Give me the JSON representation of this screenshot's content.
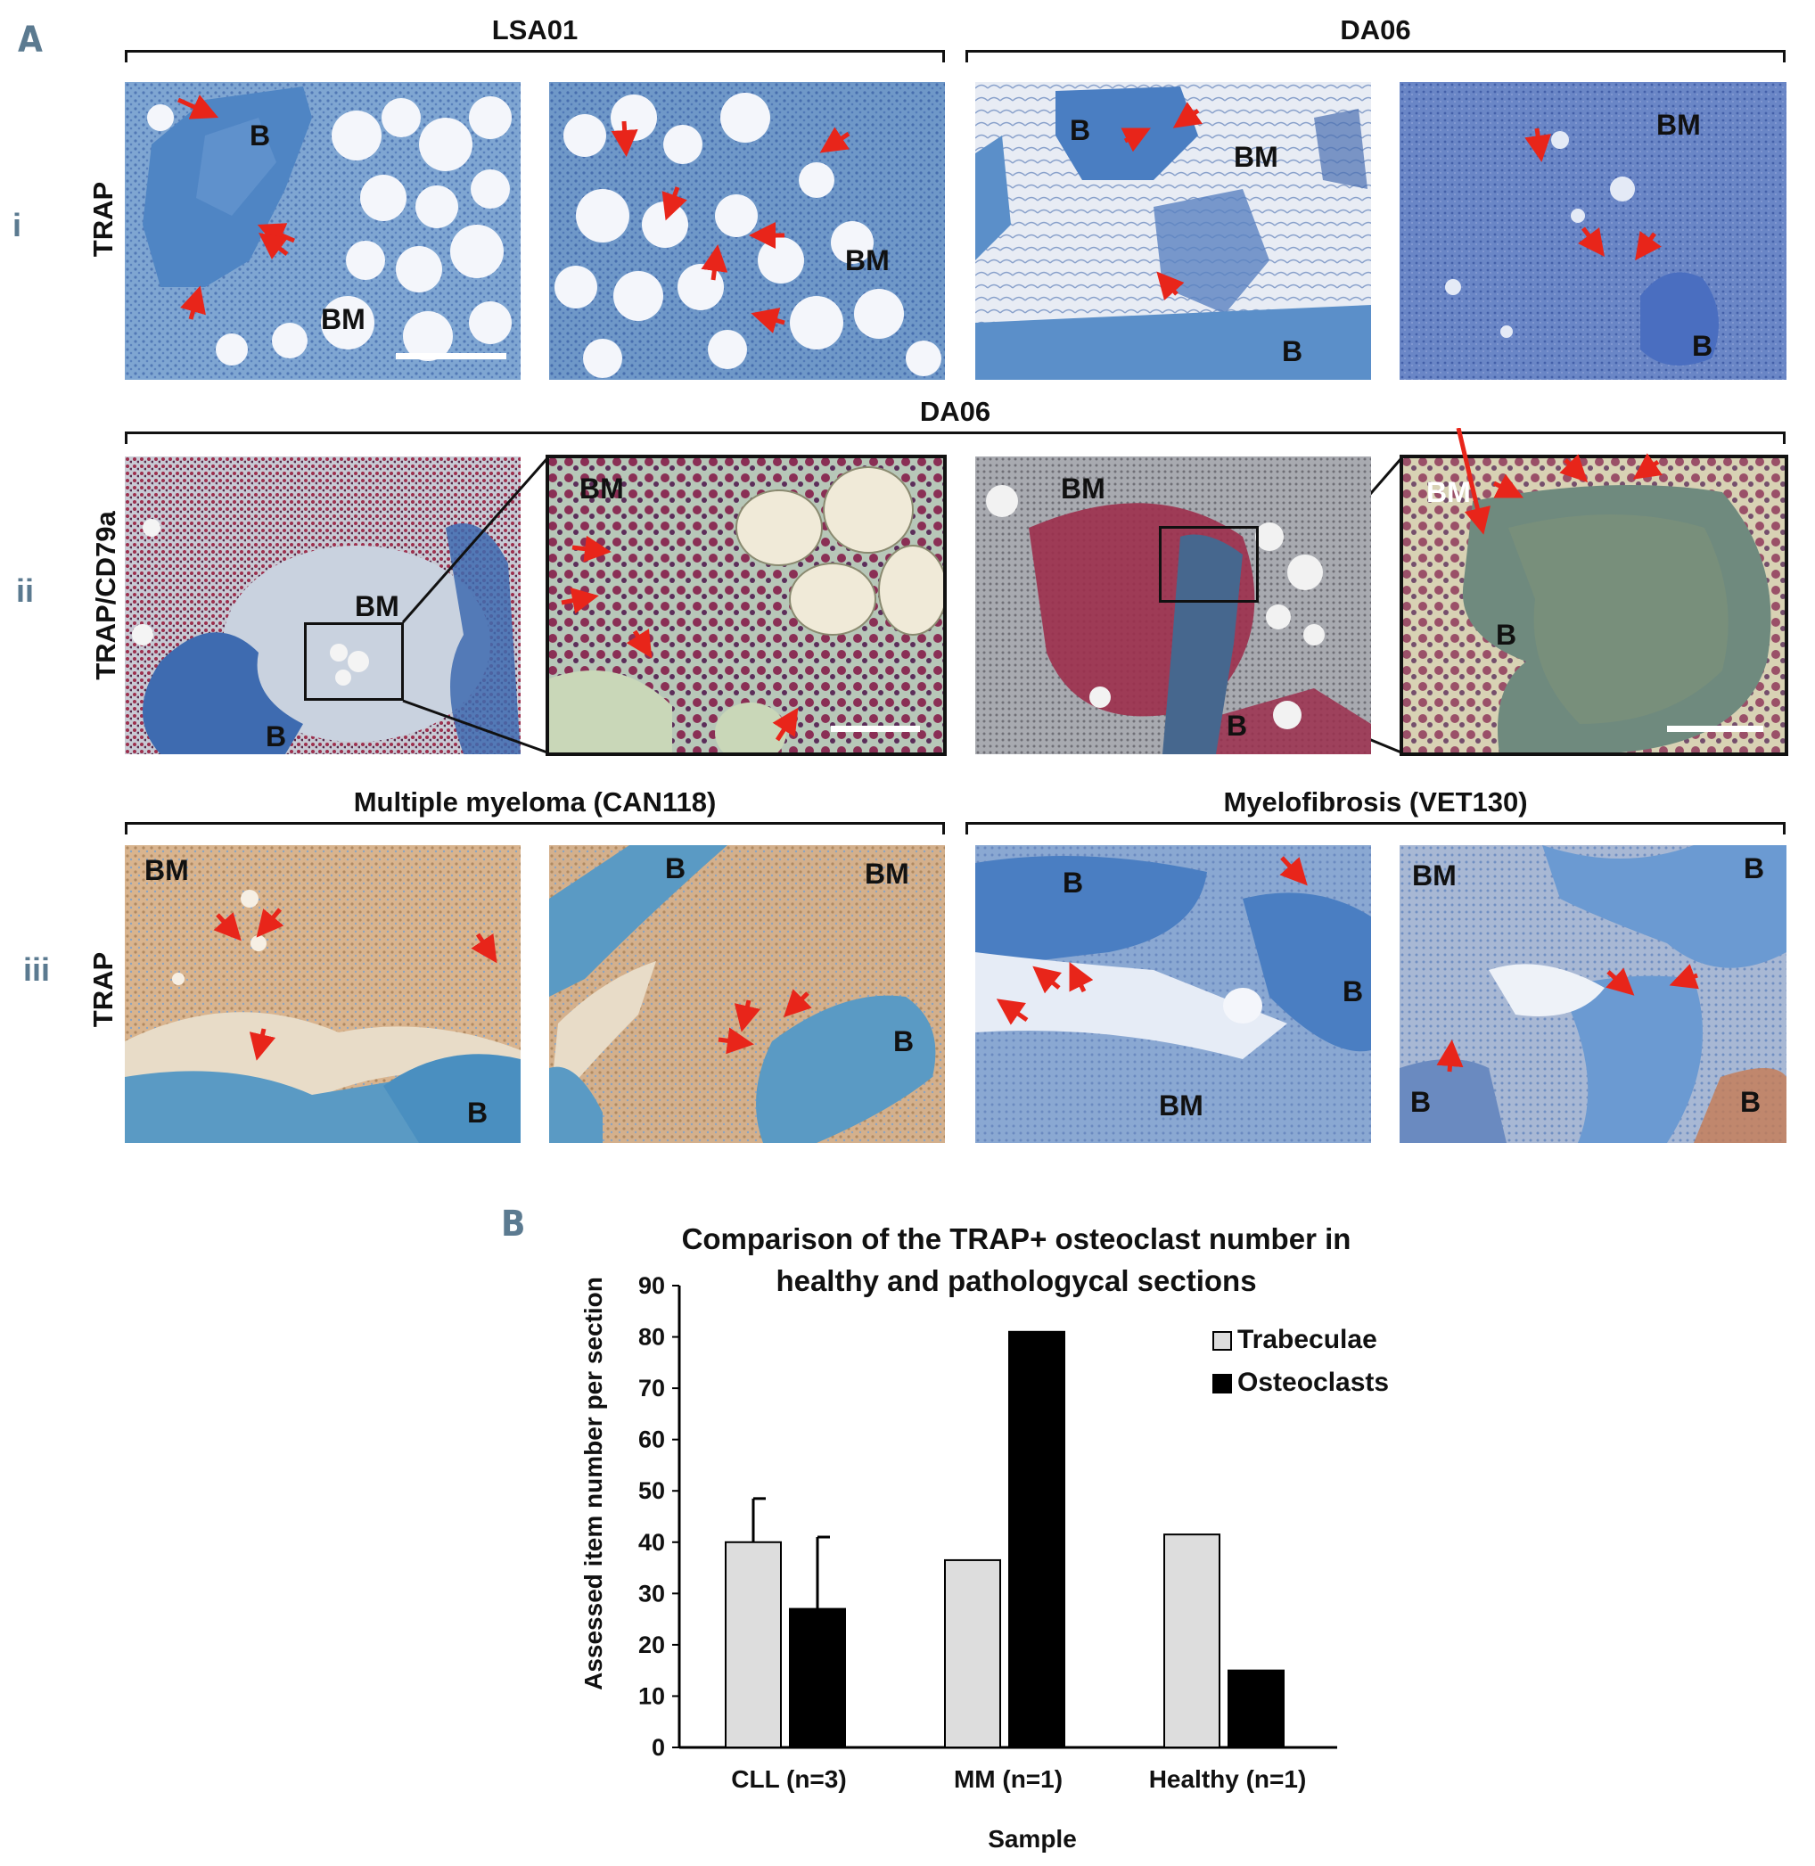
{
  "panel_a": {
    "letter": "A",
    "row_numbers": [
      "i",
      "ii",
      "iii"
    ],
    "row_labels": [
      "TRAP",
      "TRAP/CD79a",
      "TRAP"
    ],
    "groups": {
      "row1_left": "LSA01",
      "row1_right": "DA06",
      "row2": "DA06",
      "row3_left": "Multiple myeloma (CAN118)",
      "row3_right": "Myelofibrosis (VET130)"
    },
    "image_labels": {
      "r1a_b": "B",
      "r1a_bm": "BM",
      "r1b_bm": "BM",
      "r1c_b1": "B",
      "r1c_bm": "BM",
      "r1c_b2": "B",
      "r1d_bm": "BM",
      "r1d_b": "B",
      "r2a_bm": "BM",
      "r2a_b": "B",
      "r2b_bm": "BM",
      "r2c_bm": "BM",
      "r2c_b": "B",
      "r2d_bm": "BM",
      "r2d_b": "B",
      "r3a_bm": "BM",
      "r3a_b": "B",
      "r3b_b1": "B",
      "r3b_bm": "BM",
      "r3b_b2": "B",
      "r3c_b1": "B",
      "r3c_b2": "B",
      "r3c_bm": "BM",
      "r3d_bm": "BM",
      "r3d_b1": "B",
      "r3d_b2": "B",
      "r3d_b3": "B"
    }
  },
  "panel_b": {
    "letter": "B",
    "chart_data": {
      "type": "bar",
      "title": "Comparison of the TRAP+ osteoclast number in healthy and pathologycal sections",
      "title_lines": [
        "Comparison of the TRAP+ osteoclast number in",
        "healthy and pathologycal sections"
      ],
      "xlabel": "Sample",
      "ylabel": "Assessed item number per section",
      "ylim": [
        0,
        90
      ],
      "yticks": [
        "0",
        "10",
        "20",
        "30",
        "40",
        "50",
        "60",
        "70",
        "80",
        "90"
      ],
      "categories": [
        "CLL (n=3)",
        "MM (n=1)",
        "Healthy (n=1)"
      ],
      "series": [
        {
          "name": "Trabeculae",
          "values": [
            40,
            36.5,
            41.5
          ],
          "errors": [
            8.5,
            null,
            null
          ],
          "color": "#dddddd"
        },
        {
          "name": "Osteoclasts",
          "values": [
            27,
            81,
            15
          ],
          "errors": [
            14,
            null,
            null
          ],
          "color": "#000000"
        }
      ],
      "legend_position": "top-right",
      "grid": false
    }
  },
  "colors": {
    "panel_letter": "#5b7a90",
    "trap_background": "#6f98c8",
    "bone_blue": "#5b8fc9",
    "cd79a_red": "#9c2f4d",
    "arrow_red": "#e8251a",
    "mm_background": "#d9b48e"
  }
}
